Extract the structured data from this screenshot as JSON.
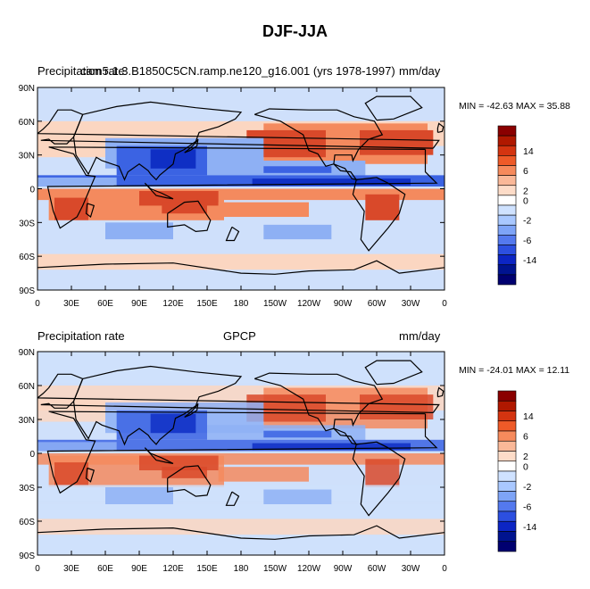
{
  "title": "DJF-JJA",
  "chart_data": [
    {
      "type": "heatmap",
      "left_label": "Precipitation rate",
      "center_label": "cam5.1.3.B1850C5CN.ramp.ne120_g16.001 (yrs 1978-1997)",
      "units_label": "mm/day",
      "min_max_text": "MIN = -42.63 MAX =  35.88",
      "min": -42.63,
      "max": 35.88
    },
    {
      "type": "heatmap",
      "left_label": "Precipitation rate",
      "center_label": "GPCP",
      "units_label": "mm/day",
      "min_max_text": "MIN = -24.01 MAX =  12.11",
      "min": -24.01,
      "max": 12.11
    }
  ],
  "x_ticks": [
    "0",
    "30E",
    "60E",
    "90E",
    "120E",
    "150E",
    "180",
    "150W",
    "120W",
    "90W",
    "60W",
    "30W",
    "0"
  ],
  "y_ticks": [
    "90N",
    "60N",
    "30N",
    "0",
    "30S",
    "60S",
    "90S"
  ],
  "colorbar_labels": [
    "14",
    "6",
    "2",
    "0",
    "-2",
    "-6",
    "-14"
  ],
  "colorbar_colors": [
    "#8a0000",
    "#b01800",
    "#d43410",
    "#ee5a28",
    "#f68a5c",
    "#fab898",
    "#fddcc8",
    "#ffffff",
    "#cfe2ff",
    "#a9c8ff",
    "#7ea4f7",
    "#5479ee",
    "#2c4fe0",
    "#0c25c4",
    "#00138f",
    "#000070"
  ],
  "colors": {
    "pos_strong": "#d9492a",
    "pos_mid": "#f48a5e",
    "pos_weak": "#fbd6c1",
    "neg_weak": "#cfe0fb",
    "neg_mid": "#8eb0f4",
    "neg_strong": "#3b63e3",
    "neg_max": "#0f2fc4",
    "coast": "#000000"
  }
}
